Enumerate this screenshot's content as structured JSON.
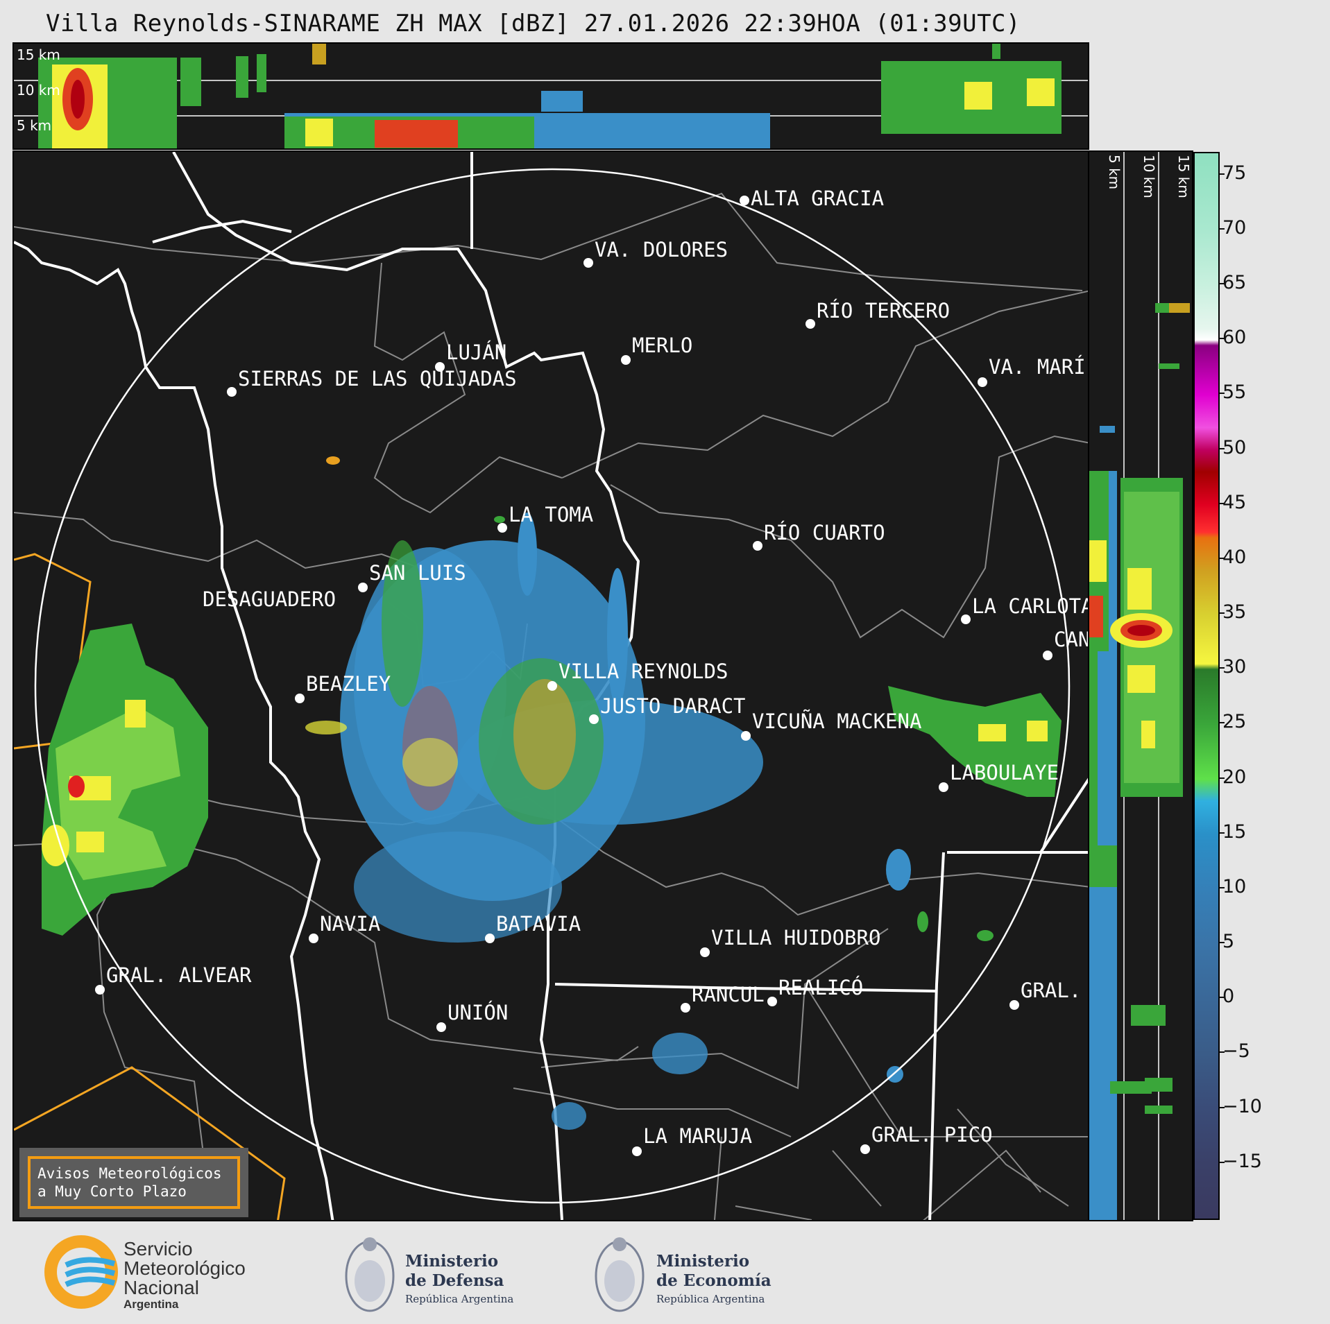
{
  "title": "Villa Reynolds-SINARAME ZH MAX [dBZ] 27.01.2026 22:39HOA (01:39UTC)",
  "top_panel": {
    "altitude_labels": [
      "15 km",
      "10 km",
      "5 km"
    ]
  },
  "side_panel": {
    "altitude_labels": [
      "5 km",
      "10 km",
      "15 km"
    ]
  },
  "colorbar": {
    "unit": "dBZ",
    "ticks": [
      "75",
      "70",
      "65",
      "60",
      "55",
      "50",
      "45",
      "40",
      "35",
      "30",
      "25",
      "20",
      "15",
      "10",
      "5",
      "0",
      "−5",
      "−10",
      "−15"
    ],
    "range": [
      -20,
      77
    ]
  },
  "cities": [
    {
      "name": "ALTA GRACIA"
    },
    {
      "name": "VA. DOLORES"
    },
    {
      "name": "RÍO TERCERO"
    },
    {
      "name": "LUJÁN"
    },
    {
      "name": "MERLO"
    },
    {
      "name": "VA. MARÍ"
    },
    {
      "name": "SIERRAS DE LAS QUIJADAS"
    },
    {
      "name": "LA TOMA"
    },
    {
      "name": "RÍO CUARTO"
    },
    {
      "name": "SAN LUIS"
    },
    {
      "name": "DESAGUADERO"
    },
    {
      "name": "LA CARLOTA"
    },
    {
      "name": "CAN"
    },
    {
      "name": "VILLA REYNOLDS"
    },
    {
      "name": "BEAZLEY"
    },
    {
      "name": "JUSTO DARACT"
    },
    {
      "name": "VICUÑA MACKENA"
    },
    {
      "name": "LABOULAYE"
    },
    {
      "name": "NAVIA"
    },
    {
      "name": "BATAVIA"
    },
    {
      "name": "VILLA HUIDOBRO"
    },
    {
      "name": "GRAL. ALVEAR"
    },
    {
      "name": "RANCUL"
    },
    {
      "name": "REALICÓ"
    },
    {
      "name": "GRAL."
    },
    {
      "name": "UNIÓN"
    },
    {
      "name": "LA MARUJA"
    },
    {
      "name": "GRAL. PICO"
    }
  ],
  "warning": {
    "line1": "Avisos Meteorológicos",
    "line2": "a Muy Corto Plazo"
  },
  "logos": {
    "smn": {
      "line1": "Servicio",
      "line2": "Meteorológico",
      "line3": "Nacional",
      "line4": "Argentina"
    },
    "defensa": {
      "line1": "Ministerio",
      "line2": "de Defensa",
      "line3": "República Argentina"
    },
    "economia": {
      "line1": "Ministerio",
      "line2": "de Economía",
      "line3": "República Argentina"
    }
  },
  "colors": {
    "range_ring": "#ffffff",
    "border_province": "#ffffff",
    "border_department": "#8a8a8a",
    "alert_polygon": "#f5a623"
  }
}
